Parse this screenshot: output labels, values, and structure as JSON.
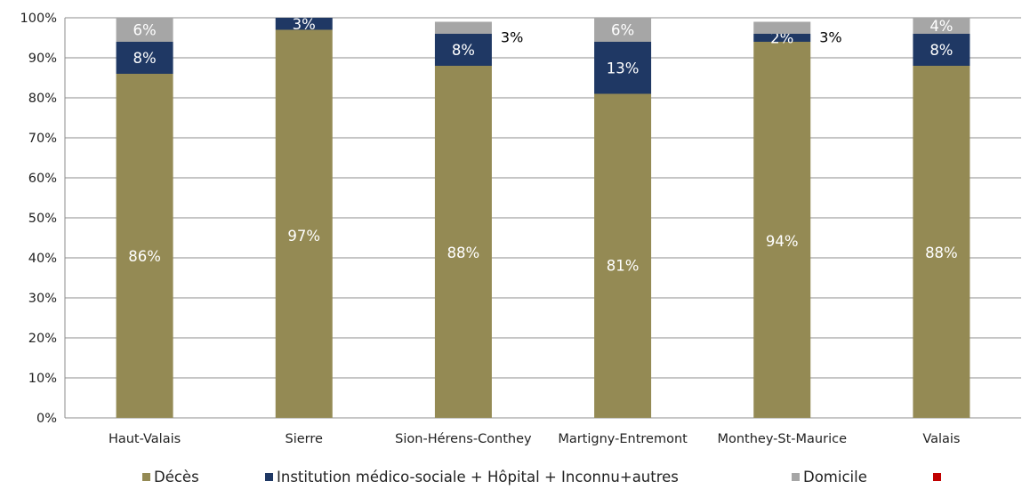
{
  "chart_data": {
    "type": "bar",
    "stacked": true,
    "categories": [
      "Haut-Valais",
      "Sierre",
      "Sion-Hérens-Conthey",
      "Martigny-Entremont",
      "Monthey-St-Maurice",
      "Valais"
    ],
    "series": [
      {
        "name": "Décès",
        "color": "#948A54",
        "values": [
          86,
          97,
          88,
          81,
          94,
          88
        ],
        "labels": [
          "86%",
          "97%",
          "88%",
          "81%",
          "94%",
          "88%"
        ]
      },
      {
        "name": "Institution médico-sociale + Hôpital + Inconnu+autres",
        "color": "#1F3864",
        "values": [
          8,
          3,
          8,
          13,
          2,
          8
        ],
        "labels": [
          "8%",
          "3%",
          "8%",
          "13%",
          "2%",
          "8%"
        ]
      },
      {
        "name": "Domicile",
        "color": "#A6A6A6",
        "values": [
          6,
          0,
          3,
          6,
          3,
          4
        ],
        "labels": [
          "6%",
          "",
          "3%",
          "6%",
          "3%",
          "4%"
        ]
      },
      {
        "name": "",
        "color": "#C00000",
        "values": [
          0,
          0,
          0,
          0,
          0,
          0
        ],
        "labels": [
          "",
          "",
          "",
          "",
          "",
          ""
        ]
      }
    ],
    "ylim": [
      0,
      100
    ],
    "yticks": [
      "0%",
      "10%",
      "20%",
      "30%",
      "40%",
      "50%",
      "60%",
      "70%",
      "80%",
      "90%",
      "100%"
    ],
    "grid": true,
    "legend_position": "bottom",
    "title": "",
    "xlabel": "",
    "ylabel": ""
  }
}
